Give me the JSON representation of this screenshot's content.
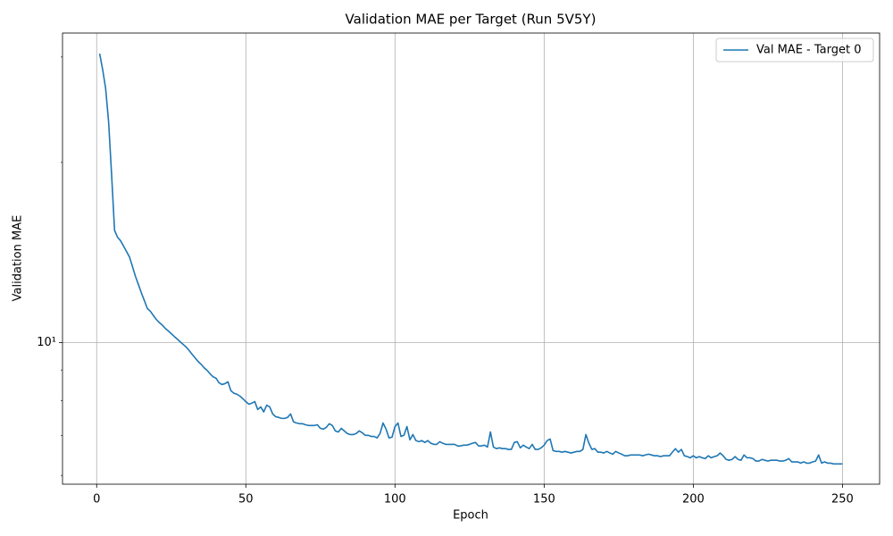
{
  "chart_data": {
    "type": "line",
    "title": "Validation MAE per Target (Run 5V5Y)",
    "xlabel": "Epoch",
    "ylabel": "Validation MAE",
    "x": [
      1,
      2,
      3,
      4,
      5,
      6,
      7,
      8,
      9,
      10,
      11,
      12,
      13,
      14,
      15,
      16,
      17,
      18,
      19,
      20,
      21,
      22,
      23,
      24,
      25,
      26,
      27,
      28,
      29,
      30,
      31,
      32,
      33,
      34,
      35,
      36,
      37,
      38,
      39,
      40,
      41,
      42,
      43,
      44,
      45,
      46,
      47,
      48,
      49,
      50,
      51,
      52,
      53,
      54,
      55,
      56,
      57,
      58,
      59,
      60,
      61,
      62,
      63,
      64,
      65,
      66,
      67,
      68,
      69,
      70,
      71,
      72,
      73,
      74,
      75,
      76,
      77,
      78,
      79,
      80,
      81,
      82,
      83,
      84,
      85,
      86,
      87,
      88,
      89,
      90,
      91,
      92,
      93,
      94,
      95,
      96,
      97,
      98,
      99,
      100,
      101,
      102,
      103,
      104,
      105,
      106,
      107,
      108,
      109,
      110,
      111,
      112,
      113,
      114,
      115,
      116,
      117,
      118,
      119,
      120,
      121,
      122,
      123,
      124,
      125,
      126,
      127,
      128,
      129,
      130,
      131,
      132,
      133,
      134,
      135,
      136,
      137,
      138,
      139,
      140,
      141,
      142,
      143,
      144,
      145,
      146,
      147,
      148,
      149,
      150,
      151,
      152,
      153,
      154,
      155,
      156,
      157,
      158,
      159,
      160,
      161,
      162,
      163,
      164,
      165,
      166,
      167,
      168,
      169,
      170,
      171,
      172,
      173,
      174,
      175,
      176,
      177,
      178,
      179,
      180,
      181,
      182,
      183,
      184,
      185,
      186,
      187,
      188,
      189,
      190,
      191,
      192,
      193,
      194,
      195,
      196,
      197,
      198,
      199,
      200,
      201,
      202,
      203,
      204,
      205,
      206,
      207,
      208,
      209,
      210,
      211,
      212,
      213,
      214,
      215,
      216,
      217,
      218,
      219,
      220,
      221,
      222,
      223,
      224,
      225,
      226,
      227,
      228,
      229,
      230,
      231,
      232,
      233,
      234,
      235,
      236,
      237,
      238,
      239,
      240,
      241,
      242,
      243,
      244,
      245,
      246,
      247,
      248,
      249,
      250
    ],
    "series": [
      {
        "name": "Val MAE - Target 0",
        "color": "#1f77b4",
        "values": [
          30.4,
          28.6,
          26.6,
          23.4,
          19.1,
          15.4,
          15.0,
          14.8,
          14.5,
          14.2,
          13.9,
          13.4,
          12.9,
          12.5,
          12.1,
          11.75,
          11.4,
          11.28,
          11.1,
          10.93,
          10.8,
          10.7,
          10.56,
          10.46,
          10.35,
          10.24,
          10.14,
          10.03,
          9.93,
          9.83,
          9.7,
          9.56,
          9.43,
          9.3,
          9.2,
          9.08,
          8.99,
          8.87,
          8.77,
          8.72,
          8.57,
          8.51,
          8.54,
          8.6,
          8.31,
          8.23,
          8.2,
          8.14,
          8.06,
          7.97,
          7.89,
          7.92,
          7.97,
          7.73,
          7.81,
          7.66,
          7.86,
          7.81,
          7.6,
          7.52,
          7.5,
          7.47,
          7.47,
          7.5,
          7.6,
          7.37,
          7.34,
          7.32,
          7.32,
          7.29,
          7.27,
          7.27,
          7.27,
          7.29,
          7.19,
          7.17,
          7.22,
          7.32,
          7.27,
          7.12,
          7.09,
          7.19,
          7.12,
          7.05,
          7.02,
          7.02,
          7.05,
          7.12,
          7.07,
          7.0,
          7.0,
          6.97,
          6.97,
          6.93,
          7.05,
          7.34,
          7.17,
          6.93,
          6.95,
          7.24,
          7.34,
          6.97,
          7.0,
          7.24,
          6.88,
          7.02,
          6.86,
          6.83,
          6.86,
          6.81,
          6.86,
          6.79,
          6.76,
          6.76,
          6.83,
          6.79,
          6.76,
          6.76,
          6.76,
          6.76,
          6.72,
          6.72,
          6.74,
          6.74,
          6.76,
          6.79,
          6.81,
          6.72,
          6.72,
          6.74,
          6.69,
          7.09,
          6.69,
          6.65,
          6.67,
          6.65,
          6.65,
          6.63,
          6.63,
          6.81,
          6.83,
          6.67,
          6.74,
          6.69,
          6.65,
          6.76,
          6.63,
          6.63,
          6.67,
          6.74,
          6.86,
          6.9,
          6.6,
          6.58,
          6.58,
          6.56,
          6.58,
          6.56,
          6.54,
          6.56,
          6.58,
          6.58,
          6.63,
          7.02,
          6.79,
          6.63,
          6.65,
          6.56,
          6.56,
          6.54,
          6.58,
          6.54,
          6.51,
          6.58,
          6.54,
          6.51,
          6.47,
          6.47,
          6.49,
          6.49,
          6.49,
          6.49,
          6.47,
          6.49,
          6.51,
          6.49,
          6.47,
          6.47,
          6.45,
          6.47,
          6.47,
          6.47,
          6.56,
          6.65,
          6.56,
          6.63,
          6.47,
          6.45,
          6.42,
          6.47,
          6.42,
          6.45,
          6.42,
          6.4,
          6.47,
          6.42,
          6.45,
          6.47,
          6.54,
          6.47,
          6.38,
          6.36,
          6.38,
          6.45,
          6.38,
          6.36,
          6.49,
          6.42,
          6.42,
          6.4,
          6.34,
          6.34,
          6.38,
          6.36,
          6.34,
          6.36,
          6.36,
          6.36,
          6.34,
          6.34,
          6.36,
          6.4,
          6.32,
          6.32,
          6.32,
          6.29,
          6.32,
          6.29,
          6.29,
          6.32,
          6.34,
          6.49,
          6.29,
          6.32,
          6.29,
          6.29,
          6.27,
          6.27,
          6.27,
          6.27
        ]
      }
    ],
    "xlim": [
      -11.45,
      262.45
    ],
    "xticks": [
      0,
      50,
      100,
      150,
      200,
      250
    ],
    "ylim": [
      5.8,
      32.9
    ],
    "yscale": "log",
    "yticks": [
      {
        "value": 10,
        "label": "10¹"
      }
    ],
    "yminorticks": [
      6,
      7,
      8,
      9,
      20,
      30
    ],
    "grid": true,
    "legend": "upper right"
  }
}
